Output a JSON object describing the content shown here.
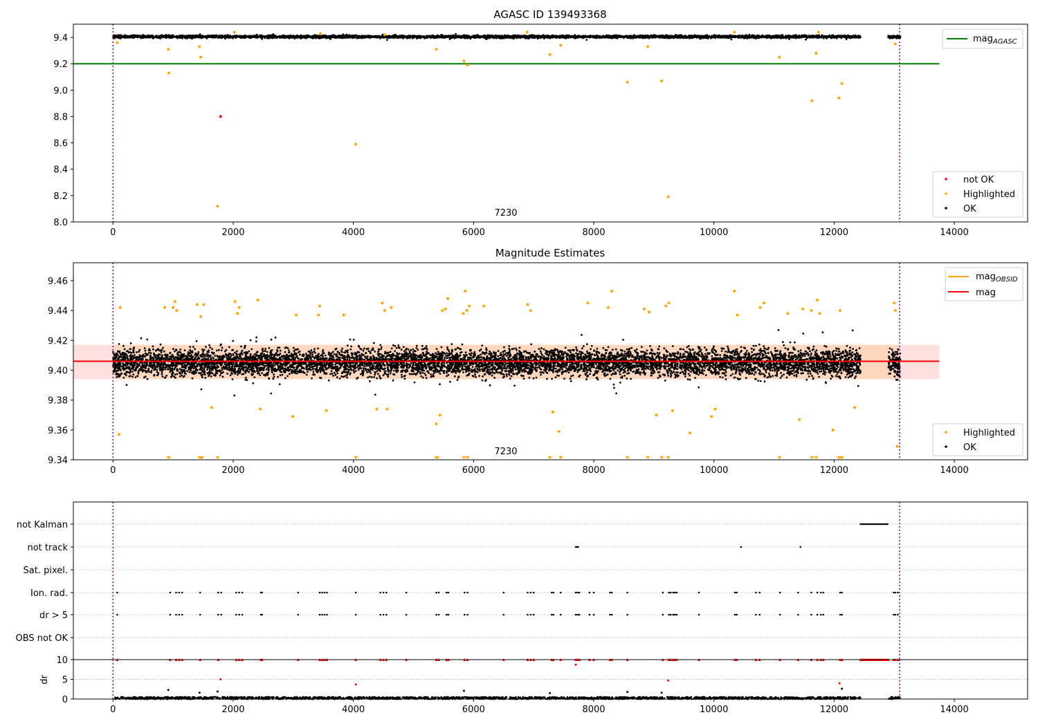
{
  "chart_data": [
    {
      "type": "scatter",
      "title": "AGASC ID 139493368",
      "annotation": "7230",
      "xlim": [
        -660,
        15220
      ],
      "ylim": [
        8.0,
        9.5
      ],
      "x_ticks": [
        0,
        2000,
        4000,
        6000,
        8000,
        10000,
        12000,
        14000
      ],
      "y_ticks": [
        8.0,
        8.2,
        8.4,
        8.6,
        8.8,
        9.0,
        9.2,
        9.4
      ],
      "vlines": [
        0,
        13090
      ],
      "hline": {
        "name": "mag_AGASC",
        "value": 9.2,
        "x_range": [
          -660,
          13750
        ],
        "color": "#008000"
      },
      "legend_top": [
        {
          "label": "mag",
          "sub": "AGASC",
          "color": "#008000",
          "marker": "line"
        }
      ],
      "legend_bottom": [
        {
          "label": "not OK",
          "color": "#ff0000",
          "marker": "dot"
        },
        {
          "label": "Highlighted",
          "color": "#ffa500",
          "marker": "dot"
        },
        {
          "label": "OK",
          "color": "#000000",
          "marker": "dot"
        }
      ],
      "band": {
        "center": 9.405,
        "amplitude": 0.015,
        "segments": [
          [
            0,
            12440
          ],
          [
            12900,
            13100
          ]
        ]
      },
      "series": [
        {
          "name": "not OK",
          "color": "#ff0000",
          "x": [
            1790
          ],
          "y": [
            8.8
          ]
        },
        {
          "name": "Highlighted",
          "color": "#ffa500",
          "x": [
            920,
            930,
            1440,
            1460,
            1740,
            4040,
            5380,
            5840,
            5900,
            7270,
            7450,
            8560,
            8900,
            9130,
            9240,
            11090,
            11630,
            11700,
            12080,
            12130,
            70,
            2020,
            3450,
            4520,
            6890,
            10340,
            11740,
            13020
          ],
          "y": [
            9.31,
            9.13,
            9.33,
            9.25,
            8.12,
            8.59,
            9.31,
            9.22,
            9.19,
            9.27,
            9.34,
            9.06,
            9.33,
            9.07,
            8.19,
            9.25,
            8.92,
            9.28,
            8.94,
            9.05,
            9.36,
            9.44,
            9.43,
            9.42,
            9.44,
            9.44,
            9.44,
            9.35
          ]
        }
      ]
    },
    {
      "type": "scatter",
      "title": "Magnitude Estimates",
      "annotation": "7230",
      "xlim": [
        -660,
        15220
      ],
      "ylim": [
        9.34,
        9.472
      ],
      "x_ticks": [
        0,
        2000,
        4000,
        6000,
        8000,
        10000,
        12000,
        14000
      ],
      "y_ticks": [
        9.34,
        9.36,
        9.38,
        9.4,
        9.42,
        9.44,
        9.46
      ],
      "vlines": [
        0,
        13090
      ],
      "mean_line": {
        "name": "mag",
        "value": 9.406,
        "x_range": [
          -660,
          13750
        ],
        "color": "#ff0000"
      },
      "obsid_band": {
        "low": 9.394,
        "high": 9.417,
        "x_range": [
          -660,
          13750
        ],
        "color": "#ffa500"
      },
      "mag_band": {
        "low": 9.394,
        "high": 9.417,
        "x_range": [
          -660,
          13750
        ],
        "color": "#ff0000"
      },
      "legend_top": [
        {
          "label": "mag",
          "sub": "OBSID",
          "color": "#ffa500",
          "marker": "line"
        },
        {
          "label": "mag",
          "sub": "",
          "color": "#ff0000",
          "marker": "line"
        }
      ],
      "legend_bottom": [
        {
          "label": "Highlighted",
          "color": "#ffa500",
          "marker": "dot"
        },
        {
          "label": "OK",
          "color": "#000000",
          "marker": "dot"
        }
      ],
      "band": {
        "center": 9.405,
        "amplitude": 0.02,
        "segments": [
          [
            0,
            12440
          ],
          [
            12900,
            13100
          ]
        ]
      },
      "series": [
        {
          "name": "Highlighted",
          "color": "#ffa500",
          "x": [
            100,
            120,
            860,
            1000,
            1030,
            1060,
            1400,
            1460,
            1510,
            1640,
            2030,
            2070,
            2100,
            2410,
            2450,
            2990,
            3050,
            3420,
            3440,
            3550,
            3840,
            4390,
            4480,
            4520,
            4560,
            4630,
            5380,
            5440,
            5480,
            5530,
            5570,
            5830,
            5860,
            5890,
            5930,
            6170,
            6900,
            6950,
            7320,
            7420,
            7900,
            8240,
            8300,
            8840,
            8920,
            9040,
            9200,
            9250,
            9310,
            9600,
            9960,
            10020,
            10340,
            10390,
            10770,
            10830,
            11230,
            11420,
            11480,
            11620,
            11720,
            11760,
            11980,
            12100,
            12340,
            13000,
            13020,
            13050
          ],
          "y": [
            9.357,
            9.442,
            9.442,
            9.442,
            9.446,
            9.44,
            9.444,
            9.436,
            9.444,
            9.375,
            9.446,
            9.438,
            9.442,
            9.447,
            9.374,
            9.369,
            9.437,
            9.437,
            9.443,
            9.373,
            9.437,
            9.374,
            9.445,
            9.44,
            9.374,
            9.442,
            9.364,
            9.37,
            9.44,
            9.441,
            9.448,
            9.438,
            9.453,
            9.44,
            9.443,
            9.443,
            9.444,
            9.44,
            9.372,
            9.359,
            9.445,
            9.442,
            9.453,
            9.441,
            9.439,
            9.37,
            9.443,
            9.445,
            9.373,
            9.358,
            9.369,
            9.374,
            9.453,
            9.437,
            9.442,
            9.445,
            9.438,
            9.367,
            9.441,
            9.44,
            9.447,
            9.438,
            9.36,
            9.44,
            9.375,
            9.445,
            9.44,
            9.349
          ]
        },
        {
          "name": "Highlighted (below axis)",
          "color": "#ffa500",
          "marker": "triangle-down",
          "x": [
            920,
            930,
            1440,
            1460,
            1480,
            1740,
            4040,
            5380,
            5400,
            5840,
            5900,
            7270,
            7450,
            8560,
            8900,
            9130,
            9240,
            11090,
            11630,
            11700,
            12080,
            12110,
            12130
          ],
          "y": [
            9.34,
            9.34,
            9.34,
            9.34,
            9.34,
            9.34,
            9.34,
            9.34,
            9.34,
            9.34,
            9.34,
            9.34,
            9.34,
            9.34,
            9.34,
            9.34,
            9.34,
            9.34,
            9.34,
            9.34,
            9.34,
            9.34,
            9.34
          ]
        }
      ]
    },
    {
      "type": "scatter",
      "title": "",
      "xlim": [
        -660,
        15220
      ],
      "categories": [
        "not Kalman",
        "not track",
        "Sat. pixel.",
        "Ion. rad.",
        "dr > 5",
        "OBS not OK"
      ],
      "vlines": [
        0,
        13090
      ],
      "flag_x": [
        70,
        950,
        1050,
        1100,
        1150,
        1450,
        1750,
        1800,
        2050,
        2100,
        2150,
        2460,
        2480,
        3080,
        3440,
        3480,
        3520,
        3560,
        4040,
        4450,
        4500,
        4550,
        4880,
        5380,
        5420,
        5550,
        5580,
        5850,
        5900,
        6500,
        6900,
        6950,
        7000,
        7300,
        7330,
        7450,
        7700,
        7730,
        7760,
        7930,
        8000,
        8270,
        8300,
        8560,
        9150,
        9250,
        9280,
        9320,
        9350,
        9380,
        9750,
        10350,
        10380,
        10700,
        10760,
        11100,
        11400,
        11620,
        11720,
        11780,
        11820,
        12100,
        12130,
        12990,
        13020,
        13060
      ],
      "not_track_x": [
        7700,
        7720,
        7740,
        10450,
        11440
      ],
      "not_kalman_range": [
        12440,
        12900
      ]
    },
    {
      "type": "scatter",
      "title": "",
      "ylabel": "dr",
      "xlim": [
        -660,
        15220
      ],
      "ylim": [
        0,
        10
      ],
      "x_ticks": [
        0,
        2000,
        4000,
        6000,
        8000,
        10000,
        12000,
        14000
      ],
      "y_ticks": [
        0,
        5,
        10
      ],
      "vlines": [
        0,
        13090
      ],
      "clip_markers_x": [
        70,
        950,
        1050,
        1100,
        1150,
        1450,
        1750,
        2050,
        2100,
        2150,
        2460,
        2480,
        3080,
        3440,
        3480,
        3520,
        3560,
        4040,
        4450,
        4500,
        4550,
        4880,
        5380,
        5420,
        5550,
        5580,
        5850,
        5900,
        6500,
        6900,
        6950,
        7000,
        7300,
        7330,
        7450,
        7700,
        7730,
        7760,
        7930,
        8000,
        8270,
        8300,
        8560,
        9150,
        9250,
        9280,
        9320,
        9350,
        9380,
        9750,
        10350,
        10380,
        10700,
        10760,
        11100,
        11400,
        11620,
        11720,
        11780,
        11820,
        12100,
        12130,
        12990,
        13020,
        13060
      ],
      "outliers": [
        {
          "x": 1790,
          "y": 5.0,
          "color": "#ff0000"
        },
        {
          "x": 4040,
          "y": 3.7,
          "color": "#ff0000"
        },
        {
          "x": 9240,
          "y": 4.7,
          "color": "#ff0000"
        },
        {
          "x": 12090,
          "y": 4.0,
          "color": "#ff0000"
        },
        {
          "x": 920,
          "y": 2.3,
          "color": "#000000"
        },
        {
          "x": 1440,
          "y": 1.6,
          "color": "#000000"
        },
        {
          "x": 1740,
          "y": 1.9,
          "color": "#000000"
        },
        {
          "x": 5840,
          "y": 2.1,
          "color": "#000000"
        },
        {
          "x": 7270,
          "y": 1.5,
          "color": "#000000"
        },
        {
          "x": 8560,
          "y": 1.8,
          "color": "#000000"
        },
        {
          "x": 9130,
          "y": 1.6,
          "color": "#000000"
        },
        {
          "x": 12130,
          "y": 2.6,
          "color": "#000000"
        },
        {
          "x": 7700,
          "y": 8.7,
          "color": "#ff0000"
        }
      ],
      "band": {
        "center": 0.25,
        "amplitude": 0.3,
        "segments": [
          [
            0,
            12440
          ],
          [
            12900,
            13100
          ]
        ]
      }
    }
  ]
}
